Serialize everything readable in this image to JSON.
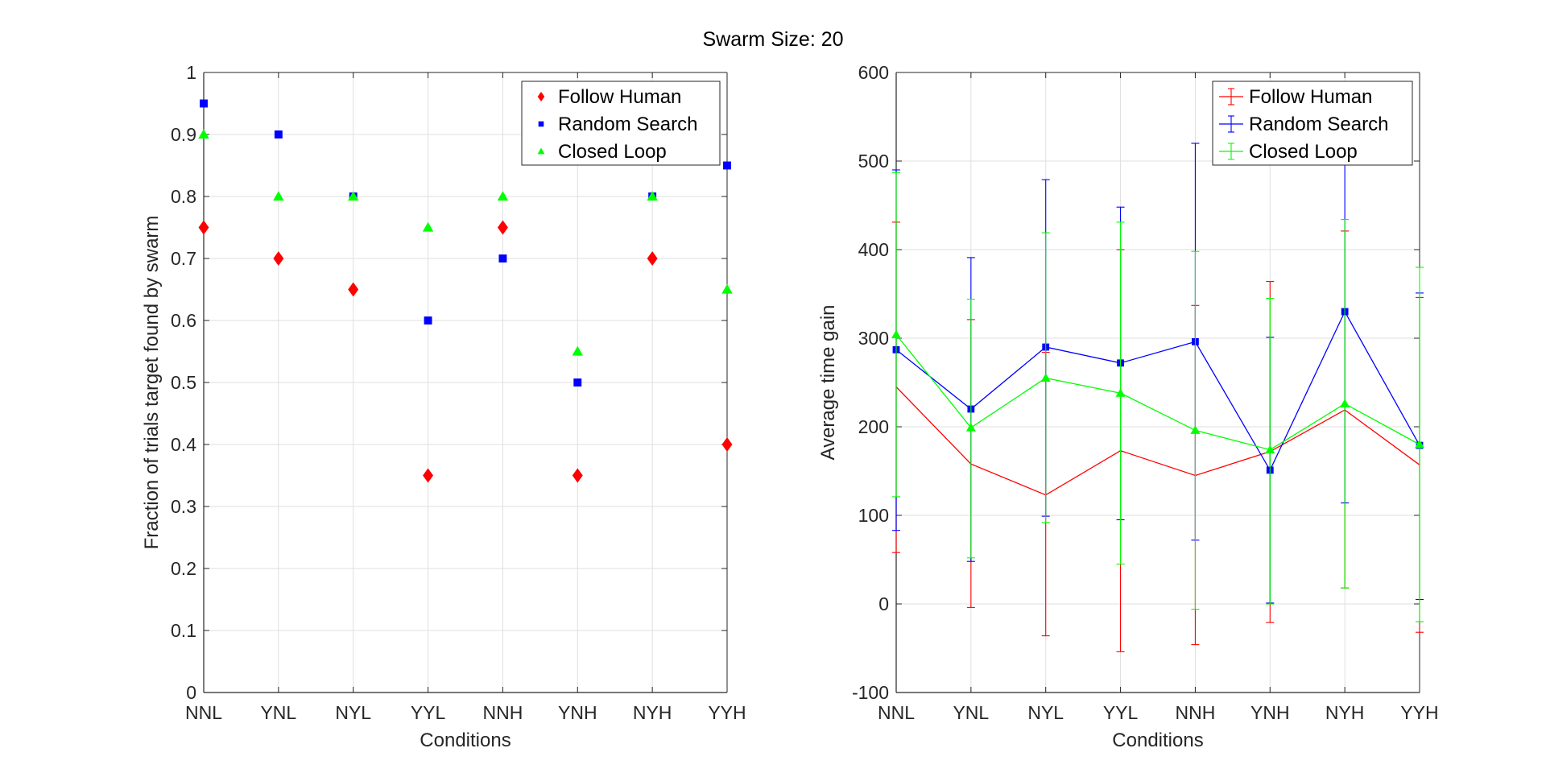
{
  "figure": {
    "title": "Swarm Size: 20"
  },
  "chart_data": [
    {
      "type": "scatter",
      "categories": [
        "NNL",
        "YNL",
        "NYL",
        "YYL",
        "NNH",
        "YNH",
        "NYH",
        "YYH"
      ],
      "xlabel": "Conditions",
      "ylabel": "Fraction of trials target found by swarm",
      "ylim": [
        0,
        1
      ],
      "yticks": [
        "0",
        "0.1",
        "0.2",
        "0.3",
        "0.4",
        "0.5",
        "0.6",
        "0.7",
        "0.8",
        "0.9",
        "1"
      ],
      "grid": true,
      "legend_position": "top-right",
      "series": [
        {
          "name": "Follow Human",
          "color": "#ff0000",
          "marker": "diamond",
          "values": [
            0.75,
            0.7,
            0.65,
            0.35,
            0.75,
            0.35,
            0.7,
            0.4
          ]
        },
        {
          "name": "Random Search",
          "color": "#0000ff",
          "marker": "square",
          "values": [
            0.95,
            0.9,
            0.8,
            0.6,
            0.7,
            0.5,
            0.8,
            0.85
          ]
        },
        {
          "name": "Closed Loop",
          "color": "#00ff00",
          "marker": "triangle",
          "values": [
            0.9,
            0.8,
            0.8,
            0.75,
            0.8,
            0.55,
            0.8,
            0.65
          ]
        }
      ]
    },
    {
      "type": "line",
      "categories": [
        "NNL",
        "YNL",
        "NYL",
        "YYL",
        "NNH",
        "YNH",
        "NYH",
        "YYH"
      ],
      "xlabel": "Conditions",
      "ylabel": "Average time gain",
      "ylim": [
        -100,
        600
      ],
      "yticks": [
        "-100",
        "0",
        "100",
        "200",
        "300",
        "400",
        "500",
        "600"
      ],
      "grid": true,
      "error_bars": true,
      "legend_position": "top-right",
      "series": [
        {
          "name": "Follow Human",
          "color": "#ff0000",
          "marker": "none",
          "values": [
            245,
            158,
            123,
            173,
            145,
            172,
            219,
            157
          ],
          "lower": [
            58,
            -4,
            -36,
            -54,
            -46,
            -21,
            18,
            -32
          ],
          "upper": [
            431,
            321,
            284,
            400,
            337,
            364,
            421,
            346
          ]
        },
        {
          "name": "Random Search",
          "color": "#0000ff",
          "marker": "square",
          "values": [
            287,
            220,
            290,
            272,
            296,
            151,
            330,
            179
          ],
          "lower": [
            83,
            48,
            99,
            95,
            72,
            1,
            114,
            5
          ],
          "upper": [
            490,
            391,
            479,
            448,
            520,
            301,
            500,
            351
          ]
        },
        {
          "name": "Closed Loop",
          "color": "#00ff00",
          "marker": "triangle",
          "values": [
            304,
            199,
            255,
            238,
            196,
            174,
            226,
            180
          ],
          "lower": [
            121,
            52,
            92,
            45,
            -6,
            0,
            18,
            -20
          ],
          "upper": [
            487,
            344,
            419,
            431,
            398,
            345,
            434,
            380
          ]
        }
      ]
    }
  ]
}
